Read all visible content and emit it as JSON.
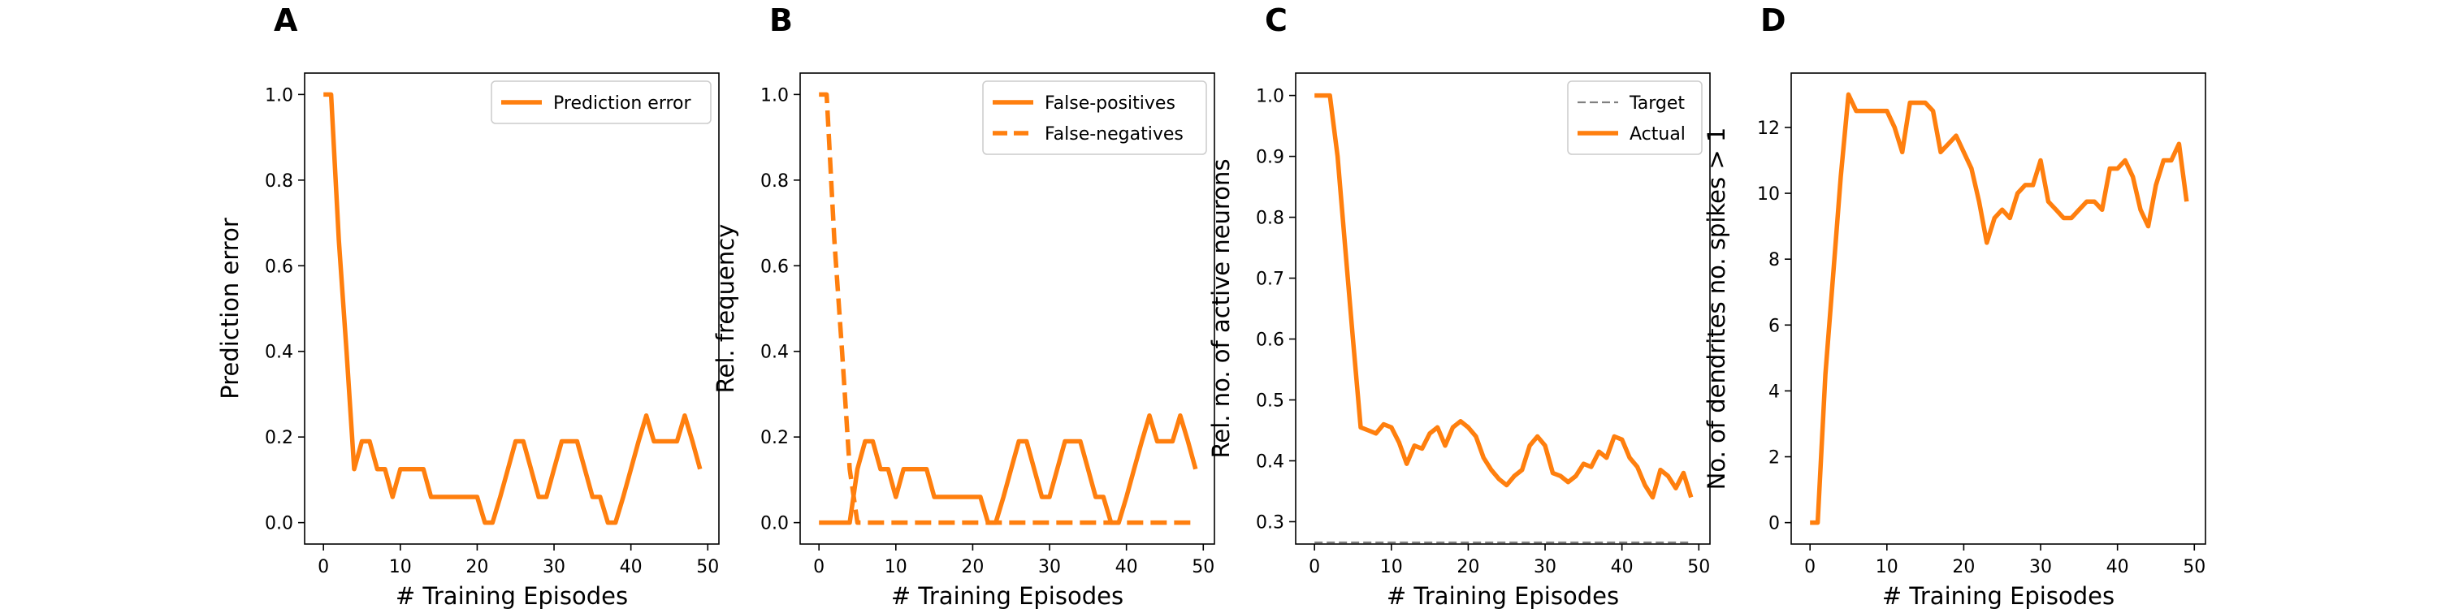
{
  "chart_data": [
    {
      "panel": "A",
      "type": "line",
      "xlabel": "# Training Episodes",
      "ylabel": "Prediction error",
      "xlim": [
        -2.45,
        51.45
      ],
      "ylim": [
        -0.05,
        1.05
      ],
      "xticks": [
        0,
        10,
        20,
        30,
        40,
        50
      ],
      "yticks": [
        0.0,
        0.2,
        0.4,
        0.6,
        0.8,
        1.0
      ],
      "ytick_labels": [
        "0.0",
        "0.2",
        "0.4",
        "0.6",
        "0.8",
        "1.0"
      ],
      "legend": "top-right",
      "grid": false,
      "x": [
        0,
        1,
        2,
        3,
        4,
        5,
        6,
        7,
        8,
        9,
        10,
        11,
        12,
        13,
        14,
        15,
        16,
        17,
        18,
        19,
        20,
        21,
        22,
        23,
        24,
        25,
        26,
        27,
        28,
        29,
        30,
        31,
        32,
        33,
        34,
        35,
        36,
        37,
        38,
        39,
        40,
        41,
        42,
        43,
        44,
        45,
        46,
        47,
        48,
        49
      ],
      "series": [
        {
          "name": "Prediction error",
          "color": "#ff7f0e",
          "dash": "solid",
          "values": [
            1.0,
            1.0,
            0.66,
            0.4,
            0.125,
            0.19,
            0.19,
            0.125,
            0.125,
            0.06,
            0.125,
            0.125,
            0.125,
            0.125,
            0.06,
            0.06,
            0.06,
            0.06,
            0.06,
            0.06,
            0.06,
            0.0,
            0.0,
            0.06,
            0.125,
            0.19,
            0.19,
            0.125,
            0.06,
            0.06,
            0.125,
            0.19,
            0.19,
            0.19,
            0.125,
            0.06,
            0.06,
            0.0,
            0.0,
            0.06,
            0.125,
            0.19,
            0.25,
            0.19,
            0.19,
            0.19,
            0.19,
            0.25,
            0.19,
            0.125
          ]
        }
      ]
    },
    {
      "panel": "B",
      "type": "line",
      "xlabel": "# Training Episodes",
      "ylabel": "Rel. frequency",
      "xlim": [
        -2.45,
        51.45
      ],
      "ylim": [
        -0.05,
        1.05
      ],
      "xticks": [
        0,
        10,
        20,
        30,
        40,
        50
      ],
      "yticks": [
        0.0,
        0.2,
        0.4,
        0.6,
        0.8,
        1.0
      ],
      "ytick_labels": [
        "0.0",
        "0.2",
        "0.4",
        "0.6",
        "0.8",
        "1.0"
      ],
      "legend": "top-right",
      "grid": false,
      "x": [
        0,
        1,
        2,
        3,
        4,
        5,
        6,
        7,
        8,
        9,
        10,
        11,
        12,
        13,
        14,
        15,
        16,
        17,
        18,
        19,
        20,
        21,
        22,
        23,
        24,
        25,
        26,
        27,
        28,
        29,
        30,
        31,
        32,
        33,
        34,
        35,
        36,
        37,
        38,
        39,
        40,
        41,
        42,
        43,
        44,
        45,
        46,
        47,
        48,
        49
      ],
      "series": [
        {
          "name": "False-positives",
          "color": "#ff7f0e",
          "dash": "solid",
          "values": [
            0.0,
            0.0,
            0.0,
            0.0,
            0.0,
            0.125,
            0.19,
            0.19,
            0.125,
            0.125,
            0.06,
            0.125,
            0.125,
            0.125,
            0.125,
            0.06,
            0.06,
            0.06,
            0.06,
            0.06,
            0.06,
            0.06,
            0.0,
            0.0,
            0.06,
            0.125,
            0.19,
            0.19,
            0.125,
            0.06,
            0.06,
            0.125,
            0.19,
            0.19,
            0.19,
            0.125,
            0.06,
            0.06,
            0.0,
            0.0,
            0.06,
            0.125,
            0.19,
            0.25,
            0.19,
            0.19,
            0.19,
            0.25,
            0.19,
            0.125
          ]
        },
        {
          "name": "False-negatives",
          "color": "#ff7f0e",
          "dash": "dashed",
          "values": [
            1.0,
            1.0,
            0.66,
            0.4,
            0.125,
            0.0,
            0.0,
            0.0,
            0.0,
            0.0,
            0.0,
            0.0,
            0.0,
            0.0,
            0.0,
            0.0,
            0.0,
            0.0,
            0.0,
            0.0,
            0.0,
            0.0,
            0.0,
            0.0,
            0.0,
            0.0,
            0.0,
            0.0,
            0.0,
            0.0,
            0.0,
            0.0,
            0.0,
            0.0,
            0.0,
            0.0,
            0.0,
            0.0,
            0.0,
            0.0,
            0.0,
            0.0,
            0.0,
            0.0,
            0.0,
            0.0,
            0.0,
            0.0,
            0.0,
            0.0
          ]
        }
      ]
    },
    {
      "panel": "C",
      "type": "line",
      "xlabel": "# Training Episodes",
      "ylabel": "Rel. no. of active neurons",
      "xlim": [
        -2.45,
        51.45
      ],
      "ylim": [
        0.2633,
        1.0368
      ],
      "xticks": [
        0,
        10,
        20,
        30,
        40,
        50
      ],
      "yticks": [
        0.3,
        0.4,
        0.5,
        0.6,
        0.7,
        0.8,
        0.9,
        1.0
      ],
      "ytick_labels": [
        "0.3",
        "0.4",
        "0.5",
        "0.6",
        "0.7",
        "0.8",
        "0.9",
        "1.0"
      ],
      "legend": "top-right",
      "grid": false,
      "x": [
        0,
        1,
        2,
        3,
        4,
        5,
        6,
        7,
        8,
        9,
        10,
        11,
        12,
        13,
        14,
        15,
        16,
        17,
        18,
        19,
        20,
        21,
        22,
        23,
        24,
        25,
        26,
        27,
        28,
        29,
        30,
        31,
        32,
        33,
        34,
        35,
        36,
        37,
        38,
        39,
        40,
        41,
        42,
        43,
        44,
        45,
        46,
        47,
        48,
        49
      ],
      "series": [
        {
          "name": "Target",
          "color": "#808080",
          "dash": "dashed",
          "values": [
            0.266,
            0.266,
            0.266,
            0.266,
            0.266,
            0.266,
            0.266,
            0.266,
            0.266,
            0.266,
            0.266,
            0.266,
            0.266,
            0.266,
            0.266,
            0.266,
            0.266,
            0.266,
            0.266,
            0.266,
            0.266,
            0.266,
            0.266,
            0.266,
            0.266,
            0.266,
            0.266,
            0.266,
            0.266,
            0.266,
            0.266,
            0.266,
            0.266,
            0.266,
            0.266,
            0.266,
            0.266,
            0.266,
            0.266,
            0.266,
            0.266,
            0.266,
            0.266,
            0.266,
            0.266,
            0.266,
            0.266,
            0.266,
            0.266,
            0.266
          ]
        },
        {
          "name": "Actual",
          "color": "#ff7f0e",
          "dash": "solid",
          "values": [
            1.0,
            1.0,
            1.0,
            0.9,
            0.75,
            0.6,
            0.455,
            0.45,
            0.445,
            0.46,
            0.455,
            0.43,
            0.395,
            0.425,
            0.42,
            0.445,
            0.455,
            0.425,
            0.455,
            0.465,
            0.455,
            0.44,
            0.405,
            0.385,
            0.37,
            0.36,
            0.375,
            0.385,
            0.425,
            0.44,
            0.425,
            0.38,
            0.375,
            0.365,
            0.375,
            0.395,
            0.39,
            0.415,
            0.405,
            0.44,
            0.435,
            0.405,
            0.39,
            0.36,
            0.34,
            0.385,
            0.375,
            0.355,
            0.38,
            0.34
          ]
        }
      ]
    },
    {
      "panel": "D",
      "type": "line",
      "xlabel": "# Training Episodes",
      "ylabel": "No. of dendrites no. spikes > 1",
      "xlim": [
        -2.45,
        51.45
      ],
      "ylim": [
        -0.65,
        13.65
      ],
      "xticks": [
        0,
        10,
        20,
        30,
        40,
        50
      ],
      "yticks": [
        0,
        2,
        4,
        6,
        8,
        10,
        12
      ],
      "ytick_labels": [
        "0",
        "2",
        "4",
        "6",
        "8",
        "10",
        "12"
      ],
      "legend": "none",
      "grid": false,
      "x": [
        0,
        1,
        2,
        3,
        4,
        5,
        6,
        7,
        8,
        9,
        10,
        11,
        12,
        13,
        14,
        15,
        16,
        17,
        18,
        19,
        20,
        21,
        22,
        23,
        24,
        25,
        26,
        27,
        28,
        29,
        30,
        31,
        32,
        33,
        34,
        35,
        36,
        37,
        38,
        39,
        40,
        41,
        42,
        43,
        44,
        45,
        46,
        47,
        48,
        49
      ],
      "series": [
        {
          "name": "",
          "color": "#ff7f0e",
          "dash": "solid",
          "values": [
            0.0,
            0.0,
            4.5,
            7.5,
            10.5,
            13.0,
            12.5,
            12.5,
            12.5,
            12.5,
            12.5,
            12.0,
            11.25,
            12.75,
            12.75,
            12.75,
            12.5,
            11.25,
            11.5,
            11.75,
            11.25,
            10.75,
            9.75,
            8.5,
            9.25,
            9.5,
            9.25,
            10.0,
            10.25,
            10.25,
            11.0,
            9.75,
            9.5,
            9.25,
            9.25,
            9.5,
            9.75,
            9.75,
            9.5,
            10.75,
            10.75,
            11.0,
            10.5,
            9.5,
            9.0,
            10.25,
            11.0,
            11.0,
            11.5,
            9.75
          ]
        }
      ]
    }
  ]
}
